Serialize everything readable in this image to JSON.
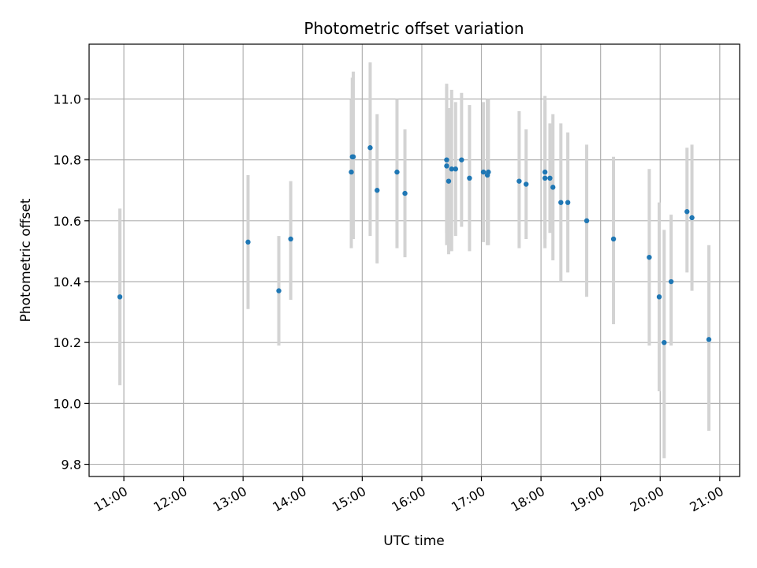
{
  "chart_data": {
    "type": "scatter",
    "title": "Photometric offset variation",
    "xlabel": "UTC time",
    "ylabel": "Photometric offset",
    "x_tick_labels": [
      "11:00",
      "12:00",
      "13:00",
      "14:00",
      "15:00",
      "16:00",
      "17:00",
      "18:00",
      "19:00",
      "20:00",
      "21:00"
    ],
    "y_tick_labels": [
      "9.8",
      "10.0",
      "10.2",
      "10.4",
      "10.6",
      "10.8",
      "11.0"
    ],
    "y_ticks": [
      9.8,
      10.0,
      10.2,
      10.4,
      10.6,
      10.8,
      11.0
    ],
    "xlim": [
      "10:25",
      "21:20"
    ],
    "ylim": [
      9.76,
      11.18
    ],
    "grid": true,
    "colors": {
      "points": "#1f77b4",
      "errorbars": "#d3d3d3",
      "grid": "#b0b0b0"
    },
    "points": [
      {
        "x": "10:56",
        "y": 10.35,
        "lo": 10.06,
        "hi": 10.64
      },
      {
        "x": "13:05",
        "y": 10.53,
        "lo": 10.31,
        "hi": 10.75
      },
      {
        "x": "13:36",
        "y": 10.37,
        "lo": 10.19,
        "hi": 10.55
      },
      {
        "x": "13:48",
        "y": 10.54,
        "lo": 10.34,
        "hi": 10.73
      },
      {
        "x": "14:49",
        "y": 10.76,
        "lo": 10.51,
        "hi": 11.0
      },
      {
        "x": "14:50",
        "y": 10.81,
        "lo": 10.55,
        "hi": 11.07
      },
      {
        "x": "14:51",
        "y": 10.81,
        "lo": 10.54,
        "hi": 11.09
      },
      {
        "x": "15:08",
        "y": 10.84,
        "lo": 10.55,
        "hi": 11.12
      },
      {
        "x": "15:15",
        "y": 10.7,
        "lo": 10.46,
        "hi": 10.95
      },
      {
        "x": "15:35",
        "y": 10.76,
        "lo": 10.51,
        "hi": 11.0
      },
      {
        "x": "15:43",
        "y": 10.69,
        "lo": 10.48,
        "hi": 10.9
      },
      {
        "x": "16:25",
        "y": 10.8,
        "lo": 10.56,
        "hi": 11.05
      },
      {
        "x": "16:25",
        "y": 10.78,
        "lo": 10.52,
        "hi": 11.04
      },
      {
        "x": "16:27",
        "y": 10.73,
        "lo": 10.49,
        "hi": 10.97
      },
      {
        "x": "16:30",
        "y": 10.77,
        "lo": 10.5,
        "hi": 11.03
      },
      {
        "x": "16:34",
        "y": 10.77,
        "lo": 10.55,
        "hi": 10.99
      },
      {
        "x": "16:40",
        "y": 10.8,
        "lo": 10.58,
        "hi": 11.02
      },
      {
        "x": "16:48",
        "y": 10.74,
        "lo": 10.5,
        "hi": 10.98
      },
      {
        "x": "17:02",
        "y": 10.76,
        "lo": 10.53,
        "hi": 10.99
      },
      {
        "x": "17:06",
        "y": 10.75,
        "lo": 10.52,
        "hi": 11.0
      },
      {
        "x": "17:07",
        "y": 10.76,
        "lo": 10.52,
        "hi": 11.0
      },
      {
        "x": "17:38",
        "y": 10.73,
        "lo": 10.51,
        "hi": 10.96
      },
      {
        "x": "17:45",
        "y": 10.72,
        "lo": 10.54,
        "hi": 10.9
      },
      {
        "x": "18:04",
        "y": 10.76,
        "lo": 10.51,
        "hi": 11.01
      },
      {
        "x": "18:04",
        "y": 10.74,
        "lo": 10.54,
        "hi": 10.99
      },
      {
        "x": "18:09",
        "y": 10.74,
        "lo": 10.56,
        "hi": 10.92
      },
      {
        "x": "18:12",
        "y": 10.71,
        "lo": 10.47,
        "hi": 10.95
      },
      {
        "x": "18:20",
        "y": 10.66,
        "lo": 10.4,
        "hi": 10.92
      },
      {
        "x": "18:27",
        "y": 10.66,
        "lo": 10.43,
        "hi": 10.89
      },
      {
        "x": "18:46",
        "y": 10.6,
        "lo": 10.35,
        "hi": 10.85
      },
      {
        "x": "19:13",
        "y": 10.54,
        "lo": 10.26,
        "hi": 10.81
      },
      {
        "x": "19:49",
        "y": 10.48,
        "lo": 10.19,
        "hi": 10.77
      },
      {
        "x": "19:59",
        "y": 10.35,
        "lo": 10.04,
        "hi": 10.66
      },
      {
        "x": "20:04",
        "y": 10.2,
        "lo": 9.82,
        "hi": 10.57
      },
      {
        "x": "20:11",
        "y": 10.4,
        "lo": 10.19,
        "hi": 10.62
      },
      {
        "x": "20:27",
        "y": 10.63,
        "lo": 10.43,
        "hi": 10.84
      },
      {
        "x": "20:32",
        "y": 10.61,
        "lo": 10.37,
        "hi": 10.85
      },
      {
        "x": "20:49",
        "y": 10.21,
        "lo": 9.91,
        "hi": 10.52
      }
    ]
  }
}
